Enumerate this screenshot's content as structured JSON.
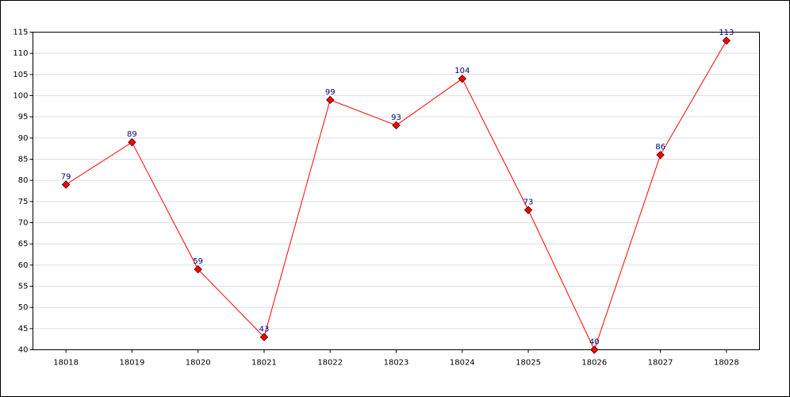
{
  "chart_data": {
    "type": "line",
    "categories": [
      "18018",
      "18019",
      "18020",
      "18021",
      "18022",
      "18023",
      "18024",
      "18025",
      "18026",
      "18027",
      "18028"
    ],
    "values": [
      79,
      89,
      59,
      43,
      99,
      93,
      104,
      73,
      40,
      86,
      113
    ],
    "color": "#ff0000",
    "ylim": [
      40,
      115
    ],
    "yticks": [
      40,
      45,
      50,
      55,
      60,
      65,
      70,
      75,
      80,
      85,
      90,
      95,
      100,
      105,
      110,
      115
    ],
    "grid": true
  }
}
